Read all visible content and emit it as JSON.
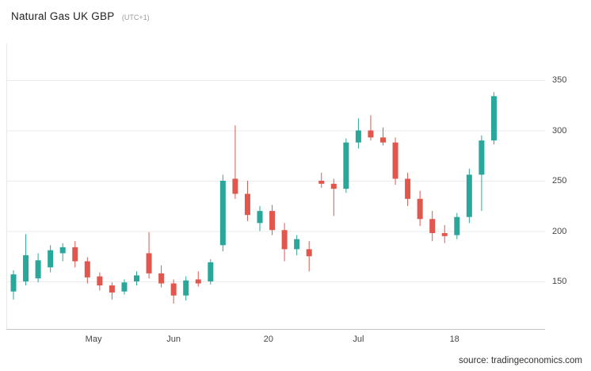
{
  "header": {
    "title": "Natural Gas UK GBP",
    "timezone": "(UTC+1)"
  },
  "footer": {
    "source": "source: tradingeconomics.com"
  },
  "colors": {
    "up": "#2aa79b",
    "down": "#e2574d",
    "grid": "#ebebeb",
    "axis": "#c4c4c4",
    "left_axis": "#e8e8e8",
    "label": "#454545"
  },
  "chart_data": {
    "type": "candlestick",
    "title": "Natural Gas UK GBP (UTC+1)",
    "ylabel": "",
    "xlabel": "",
    "ylim": [
      120,
      365
    ],
    "y_ticks": [
      150,
      200,
      250,
      300,
      350
    ],
    "grid": true,
    "x_ticks": [
      {
        "label": "May",
        "index": 6.5
      },
      {
        "label": "Jun",
        "index": 13
      },
      {
        "label": "20",
        "index": 20.7
      },
      {
        "label": "Jul",
        "index": 28
      },
      {
        "label": "18",
        "index": 35.8
      }
    ],
    "ohlc_format": [
      "open",
      "high",
      "low",
      "close"
    ],
    "candles": [
      [
        140,
        161,
        132,
        157
      ],
      [
        150,
        197,
        146,
        176
      ],
      [
        153,
        178,
        149,
        171
      ],
      [
        164,
        186,
        159,
        181
      ],
      [
        178,
        188,
        170,
        184
      ],
      [
        184,
        190,
        164,
        170
      ],
      [
        170,
        174,
        148,
        154
      ],
      [
        155,
        159,
        141,
        146
      ],
      [
        146,
        149,
        132,
        139
      ],
      [
        140,
        152,
        137,
        149
      ],
      [
        150,
        160,
        146,
        156
      ],
      [
        178,
        199,
        153,
        158
      ],
      [
        158,
        166,
        144,
        148
      ],
      [
        148,
        152,
        128,
        136
      ],
      [
        136,
        155,
        131,
        151
      ],
      [
        152,
        160,
        145,
        148
      ],
      [
        150,
        172,
        147,
        169
      ],
      [
        186,
        256,
        180,
        250
      ],
      [
        252,
        305,
        232,
        237
      ],
      [
        237,
        250,
        210,
        216
      ],
      [
        208,
        225,
        200,
        220
      ],
      [
        220,
        226,
        196,
        201
      ],
      [
        201,
        208,
        170,
        182
      ],
      [
        182,
        196,
        176,
        192
      ],
      [
        182,
        190,
        160,
        175
      ],
      [
        250,
        258,
        243,
        247
      ],
      [
        247,
        252,
        215,
        242
      ],
      [
        242,
        292,
        238,
        288
      ],
      [
        288,
        312,
        282,
        300
      ],
      [
        300,
        315,
        290,
        293
      ],
      [
        293,
        303,
        285,
        288
      ],
      [
        288,
        293,
        246,
        252
      ],
      [
        252,
        258,
        225,
        232
      ],
      [
        232,
        240,
        205,
        212
      ],
      [
        212,
        220,
        190,
        198
      ],
      [
        198,
        206,
        188,
        195
      ],
      [
        196,
        218,
        192,
        214
      ],
      [
        214,
        262,
        208,
        256
      ],
      [
        256,
        295,
        220,
        290
      ],
      [
        290,
        338,
        286,
        334
      ]
    ]
  }
}
